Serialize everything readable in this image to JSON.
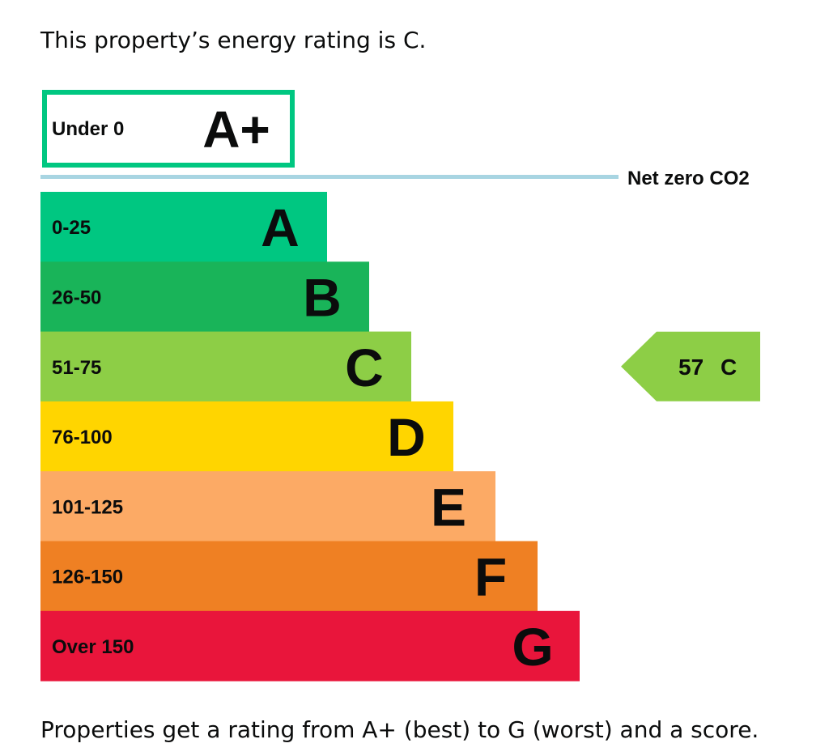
{
  "intro_text": "This property’s energy rating is C.",
  "footer_text": "Properties get a rating from A+ (best) to G (worst) and a score.",
  "chart_data": {
    "type": "bar",
    "bands": [
      {
        "range": "Under 0",
        "letter": "A+",
        "color": "#00c781",
        "style": "outline"
      },
      {
        "range": "0-25",
        "letter": "A",
        "color": "#00c781"
      },
      {
        "range": "26-50",
        "letter": "B",
        "color": "#19b459"
      },
      {
        "range": "51-75",
        "letter": "C",
        "color": "#8dce46"
      },
      {
        "range": "76-100",
        "letter": "D",
        "color": "#ffd500"
      },
      {
        "range": "101-125",
        "letter": "E",
        "color": "#fcaa65"
      },
      {
        "range": "126-150",
        "letter": "F",
        "color": "#ef8023"
      },
      {
        "range": "Over 150",
        "letter": "G",
        "color": "#e9153b"
      }
    ],
    "net_zero_label": "Net zero CO2",
    "net_zero_color": "#a8d5e2",
    "current": {
      "score": "57",
      "letter": "C",
      "band": "C",
      "color": "#8dce46"
    }
  }
}
